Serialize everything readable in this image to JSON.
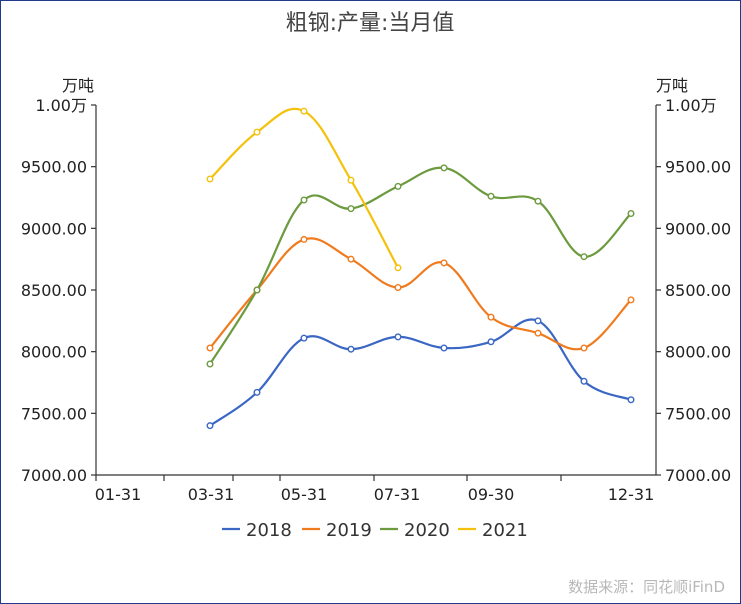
{
  "chart_data": {
    "type": "line",
    "title": "粗钢:产量:当月值",
    "unit_left": "万吨",
    "unit_right": "万吨",
    "ylim": [
      7000,
      10000
    ],
    "y_tick_labels": [
      "7000.00",
      "7500.00",
      "8000.00",
      "8500.00",
      "9000.00",
      "9500.00",
      "1.00万"
    ],
    "x_tick_labels": [
      "01-31",
      "03-31",
      "05-31",
      "07-31",
      "09-30",
      "12-31"
    ],
    "series": [
      {
        "name": "2018",
        "color": "#3a66c4",
        "points": [
          [
            "03-31",
            7400
          ],
          [
            "04-30",
            7670
          ],
          [
            "05-31",
            8110
          ],
          [
            "06-30",
            8020
          ],
          [
            "07-31",
            8120
          ],
          [
            "08-31",
            8030
          ],
          [
            "09-30",
            8080
          ],
          [
            "10-31",
            8250
          ],
          [
            "11-30",
            7760
          ],
          [
            "12-31",
            7610
          ]
        ]
      },
      {
        "name": "2019",
        "color": "#f07a1e",
        "points": [
          [
            "03-31",
            8030
          ],
          [
            "04-30",
            8500
          ],
          [
            "05-31",
            8910
          ],
          [
            "06-30",
            8750
          ],
          [
            "07-31",
            8520
          ],
          [
            "08-31",
            8720
          ],
          [
            "09-30",
            8280
          ],
          [
            "10-31",
            8150
          ],
          [
            "11-30",
            8030
          ],
          [
            "12-31",
            8420
          ]
        ]
      },
      {
        "name": "2020",
        "color": "#6c9a3f",
        "points": [
          [
            "03-31",
            7900
          ],
          [
            "04-30",
            8500
          ],
          [
            "05-31",
            9230
          ],
          [
            "06-30",
            9160
          ],
          [
            "07-31",
            9340
          ],
          [
            "08-31",
            9490
          ],
          [
            "09-30",
            9260
          ],
          [
            "10-31",
            9220
          ],
          [
            "11-30",
            8770
          ],
          [
            "12-31",
            9120
          ]
        ]
      },
      {
        "name": "2021",
        "color": "#f4c20d",
        "points": [
          [
            "03-31",
            9400
          ],
          [
            "04-30",
            9780
          ],
          [
            "05-31",
            9950
          ],
          [
            "06-30",
            9390
          ],
          [
            "07-31",
            8680
          ]
        ]
      }
    ],
    "legend": "bottom",
    "grid": false
  },
  "source": "数据来源：同花顺iFinD"
}
